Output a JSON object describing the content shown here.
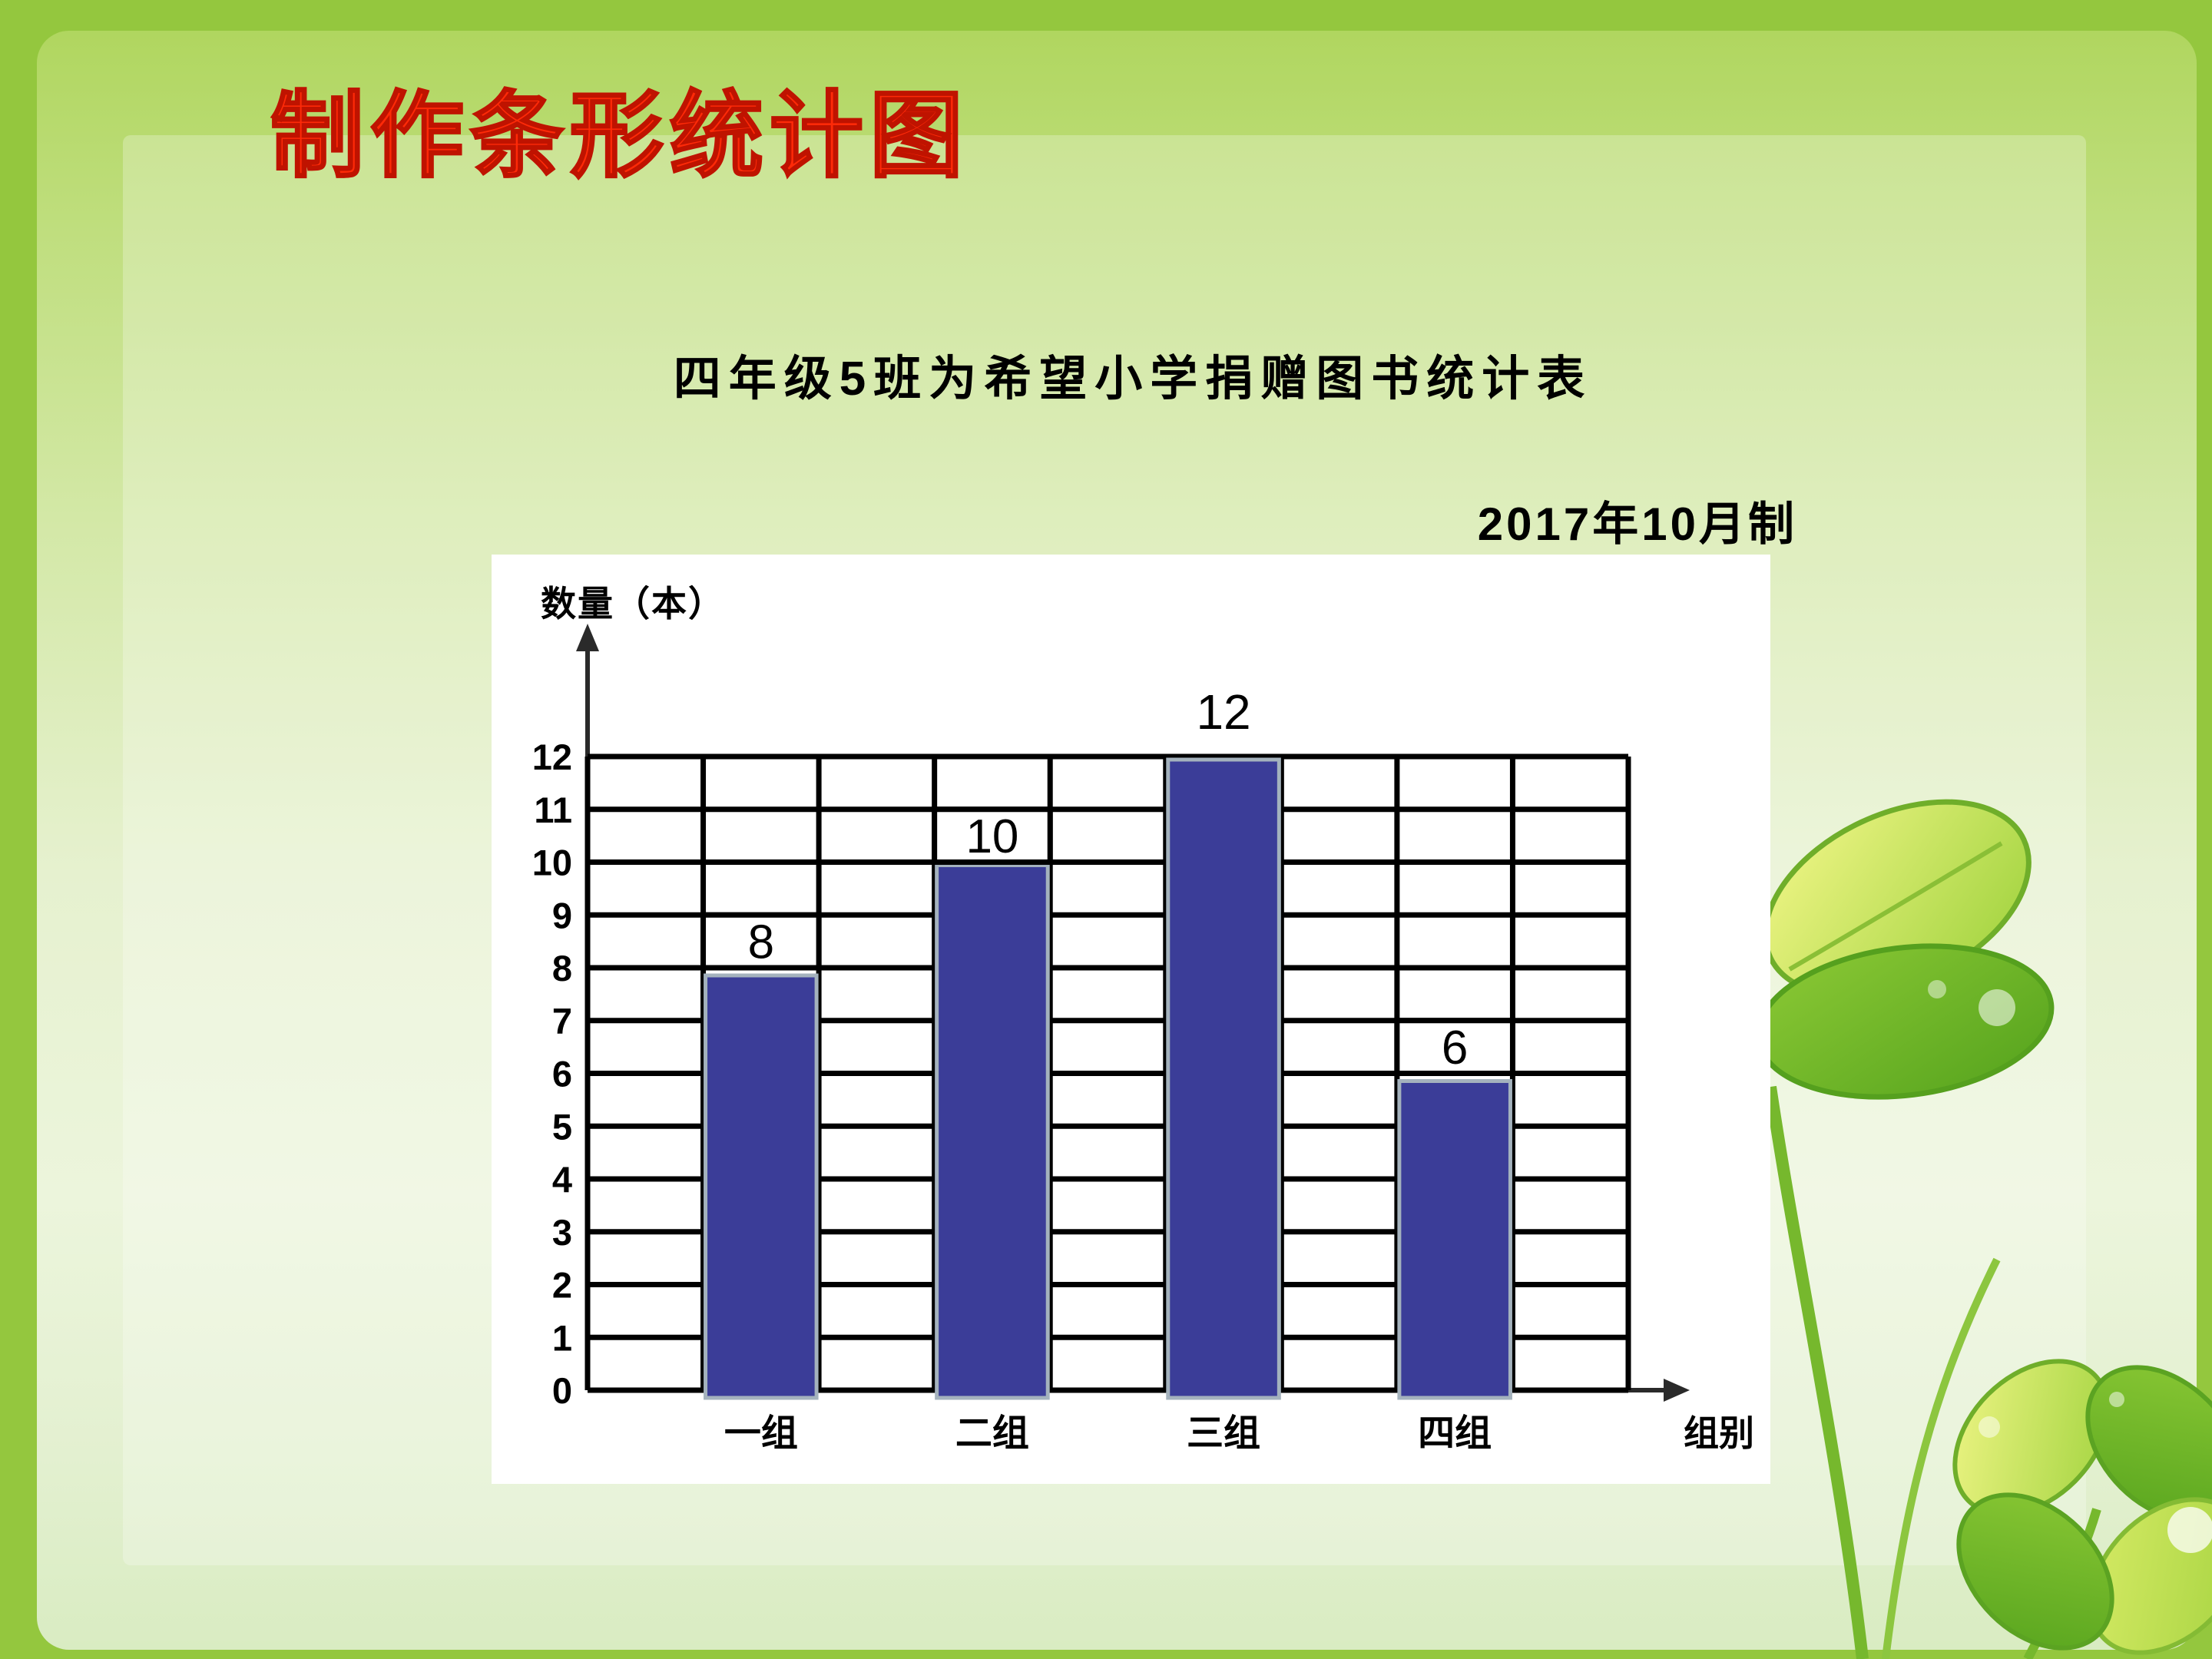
{
  "slide": {
    "title": "制作条形统计图",
    "subtitle": "四年级5班为希望小学捐赠图书统计表",
    "date_note": "2017年10月制"
  },
  "chart_data": {
    "type": "bar",
    "title": "四年级5班为希望小学捐赠图书统计表",
    "categories": [
      "一组",
      "二组",
      "三组",
      "四组"
    ],
    "values": [
      8,
      10,
      12,
      6
    ],
    "value_labels": [
      8,
      10,
      12,
      6
    ],
    "ylabel": "数量（本）",
    "xlabel": "组别",
    "ylim": [
      0,
      12
    ],
    "ytick_step": 1,
    "yticks": [
      0,
      1,
      2,
      3,
      4,
      5,
      6,
      7,
      8,
      9,
      10,
      11,
      12
    ],
    "grid": true,
    "legend_position": "none",
    "bar_color": "#3b3d98",
    "bar_border_color": "#a4b2bd",
    "grid_color": "#000000",
    "axis_color": "#2a2a2a",
    "made_note": "2017年10月制"
  },
  "colors": {
    "slide_border_green": "#94c73e",
    "panel_gradient_top": "#b0d65f",
    "panel_gradient_bottom": "#d9ecc2",
    "title_red": "#fe2a08",
    "title_outline": "#bf1300",
    "chart_panel_white": "#ffffff"
  }
}
